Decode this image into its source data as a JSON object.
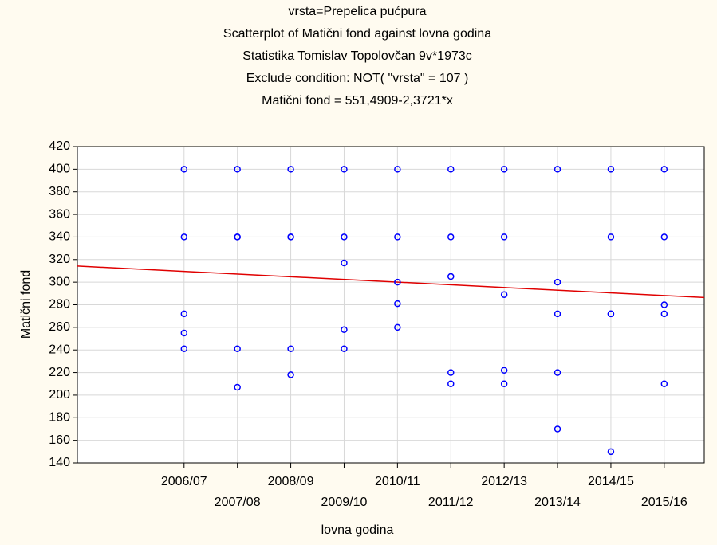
{
  "chart_data": {
    "type": "scatter",
    "titles": [
      "vrsta=Prepelica pućpura",
      "Scatterplot of Matični fond against lovna godina",
      "Statistika Tomislav Topolovčan 9v*1973c",
      "Exclude condition: NOT( \"vrsta\" = 107 )",
      "Matični fond = 551,4909-2,3721*x"
    ],
    "x_label": "lovna godina",
    "y_label": "Matični fond",
    "x": [
      102,
      102,
      102,
      102,
      102,
      103,
      103,
      103,
      103,
      103,
      104,
      104,
      104,
      104,
      104,
      105,
      105,
      105,
      105,
      105,
      106,
      106,
      106,
      106,
      106,
      107,
      107,
      107,
      107,
      107,
      108,
      108,
      108,
      108,
      108,
      109,
      109,
      109,
      109,
      109,
      110,
      110,
      110,
      110,
      110,
      111,
      111,
      111,
      111,
      111
    ],
    "values": [
      400,
      340,
      272,
      255,
      241,
      400,
      340,
      340,
      241,
      207,
      400,
      340,
      340,
      241,
      218,
      400,
      340,
      317,
      258,
      241,
      400,
      340,
      300,
      281,
      260,
      400,
      340,
      305,
      220,
      210,
      400,
      340,
      289,
      222,
      210,
      400,
      300,
      272,
      220,
      170,
      400,
      340,
      272,
      272,
      150,
      400,
      340,
      280,
      272,
      210
    ],
    "color": "#0000ff",
    "fit_line": {
      "intercept": 551.4909,
      "slope": -2.3721,
      "color": "#e00000"
    },
    "xlim": [
      100,
      111.75
    ],
    "xticks": [
      {
        "value": 102,
        "label": "2006/07"
      },
      {
        "value": 103,
        "label": "2007/08"
      },
      {
        "value": 104,
        "label": "2008/09"
      },
      {
        "value": 105,
        "label": "2009/10"
      },
      {
        "value": 106,
        "label": "2010/11"
      },
      {
        "value": 107,
        "label": "2011/12"
      },
      {
        "value": 108,
        "label": "2012/13"
      },
      {
        "value": 109,
        "label": "2013/14"
      },
      {
        "value": 110,
        "label": "2014/15"
      },
      {
        "value": 111,
        "label": "2015/16"
      }
    ],
    "ylim": [
      140,
      420
    ],
    "yticks": [
      140,
      160,
      180,
      200,
      220,
      240,
      260,
      280,
      300,
      320,
      340,
      360,
      380,
      400,
      420
    ],
    "grid": true
  }
}
